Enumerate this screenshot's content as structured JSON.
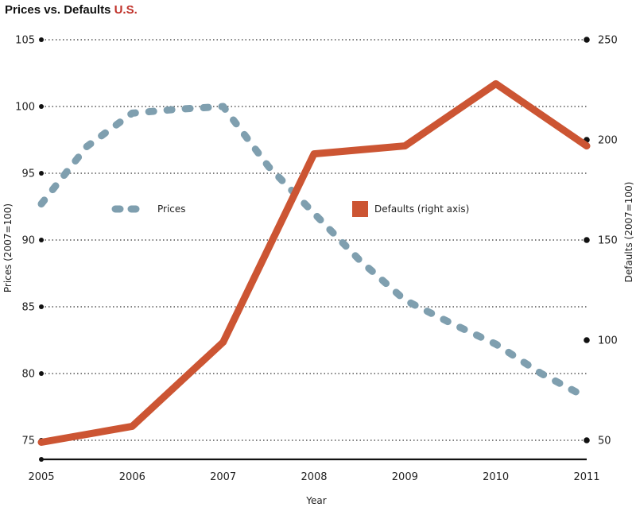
{
  "chart_data": {
    "type": "line",
    "title": "Prices vs. Defaults",
    "title_suffix": "U.S.",
    "xlabel": "Year",
    "ylabel_left": "Prices (2007=100)",
    "ylabel_right": "Defaults (2007=100)",
    "x": [
      2005,
      2006,
      2007,
      2008,
      2009,
      2010,
      2011
    ],
    "x_ticks": [
      "2005",
      "2006",
      "2007",
      "2008",
      "2009",
      "2010",
      "2011"
    ],
    "ylim_left": [
      75,
      105
    ],
    "y_ticks_left": [
      "75",
      "80",
      "85",
      "90",
      "95",
      "100",
      "105"
    ],
    "ylim_right": [
      50,
      250
    ],
    "y_ticks_right": [
      "50",
      "100",
      "150",
      "200",
      "250"
    ],
    "grid": true,
    "series": [
      {
        "name": "Prices",
        "axis": "left",
        "style": "dashed",
        "color": "#7f9faf",
        "points": [
          [
            2005.0,
            92.7
          ],
          [
            2005.5,
            97.0
          ],
          [
            2006.0,
            99.5
          ],
          [
            2006.5,
            99.8
          ],
          [
            2007.0,
            100.0
          ],
          [
            2007.5,
            95.5
          ],
          [
            2008.0,
            92.0
          ],
          [
            2008.5,
            88.5
          ],
          [
            2009.0,
            85.5
          ],
          [
            2009.5,
            83.8
          ],
          [
            2010.0,
            82.2
          ],
          [
            2010.5,
            80.0
          ],
          [
            2011.0,
            78.2
          ]
        ]
      },
      {
        "name": "Defaults (right axis)",
        "axis": "right",
        "style": "solid",
        "color": "#cc5533",
        "points": [
          [
            2005.0,
            49
          ],
          [
            2006.0,
            57
          ],
          [
            2007.0,
            99
          ],
          [
            2008.0,
            193
          ],
          [
            2009.0,
            197
          ],
          [
            2010.0,
            228
          ],
          [
            2011.0,
            197
          ]
        ]
      }
    ],
    "legend": [
      {
        "label": "Prices",
        "marker": "dashed-line",
        "color": "#7f9faf"
      },
      {
        "label": "Defaults (right axis)",
        "marker": "square",
        "color": "#cc5533"
      }
    ]
  }
}
